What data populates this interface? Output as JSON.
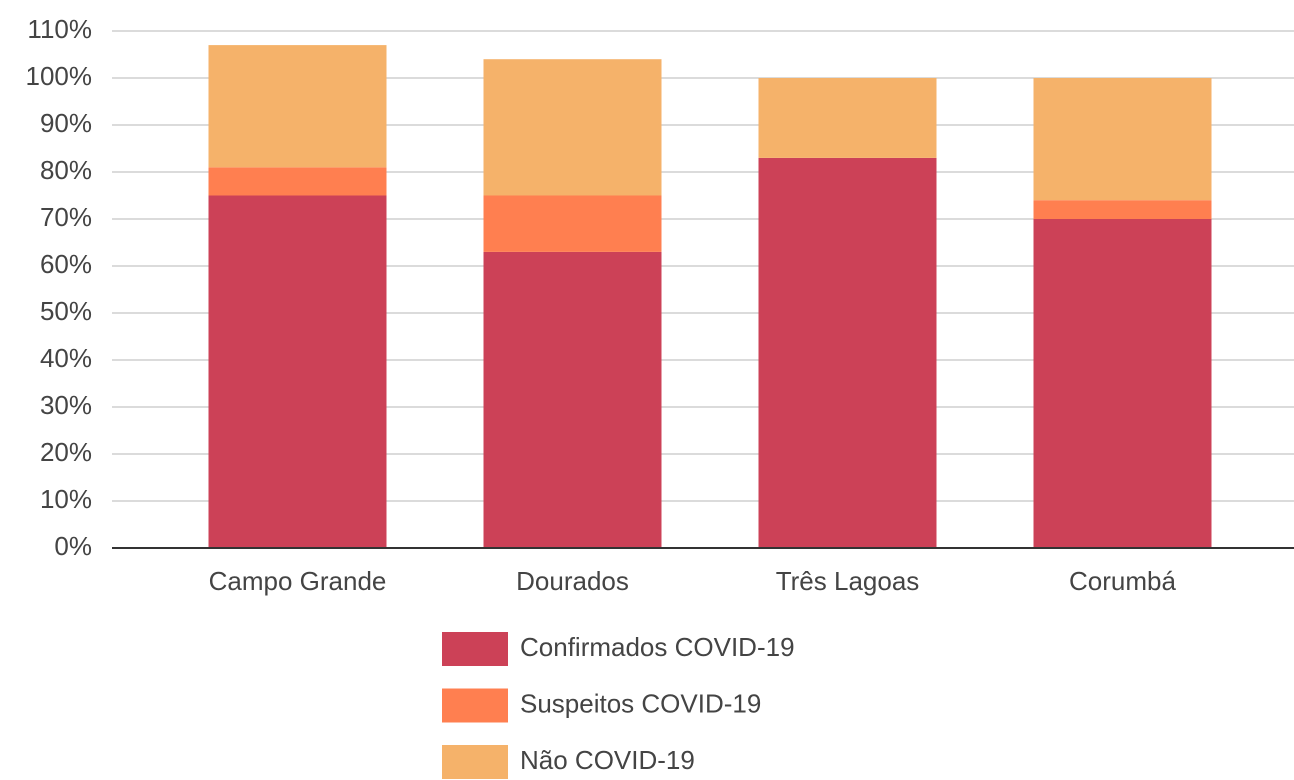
{
  "chart_data": {
    "type": "stacked_bar",
    "categories": [
      "Campo Grande",
      "Dourados",
      "Três Lagoas",
      "Corumbá"
    ],
    "series": [
      {
        "name": "Confirmados COVID-19",
        "color": "#cc4157",
        "values": [
          75,
          63,
          83,
          70
        ]
      },
      {
        "name": "Suspeitos COVID-19",
        "color": "#ff7f50",
        "values": [
          6,
          12,
          0,
          4
        ]
      },
      {
        "name": "Não COVID-19",
        "color": "#f5b26a",
        "values": [
          26,
          29,
          17,
          26
        ]
      }
    ],
    "ylim": [
      0,
      110
    ],
    "yticks": [
      {
        "value": 0,
        "label": "0%"
      },
      {
        "value": 10,
        "label": "10%"
      },
      {
        "value": 20,
        "label": "20%"
      },
      {
        "value": 30,
        "label": "30%"
      },
      {
        "value": 40,
        "label": "40%"
      },
      {
        "value": 50,
        "label": "50%"
      },
      {
        "value": 60,
        "label": "60%"
      },
      {
        "value": 70,
        "label": "70%"
      },
      {
        "value": 80,
        "label": "80%"
      },
      {
        "value": 90,
        "label": "90%"
      },
      {
        "value": 100,
        "label": "100%"
      },
      {
        "value": 110,
        "label": "110%"
      }
    ],
    "grid": true,
    "legend": "bottom"
  }
}
